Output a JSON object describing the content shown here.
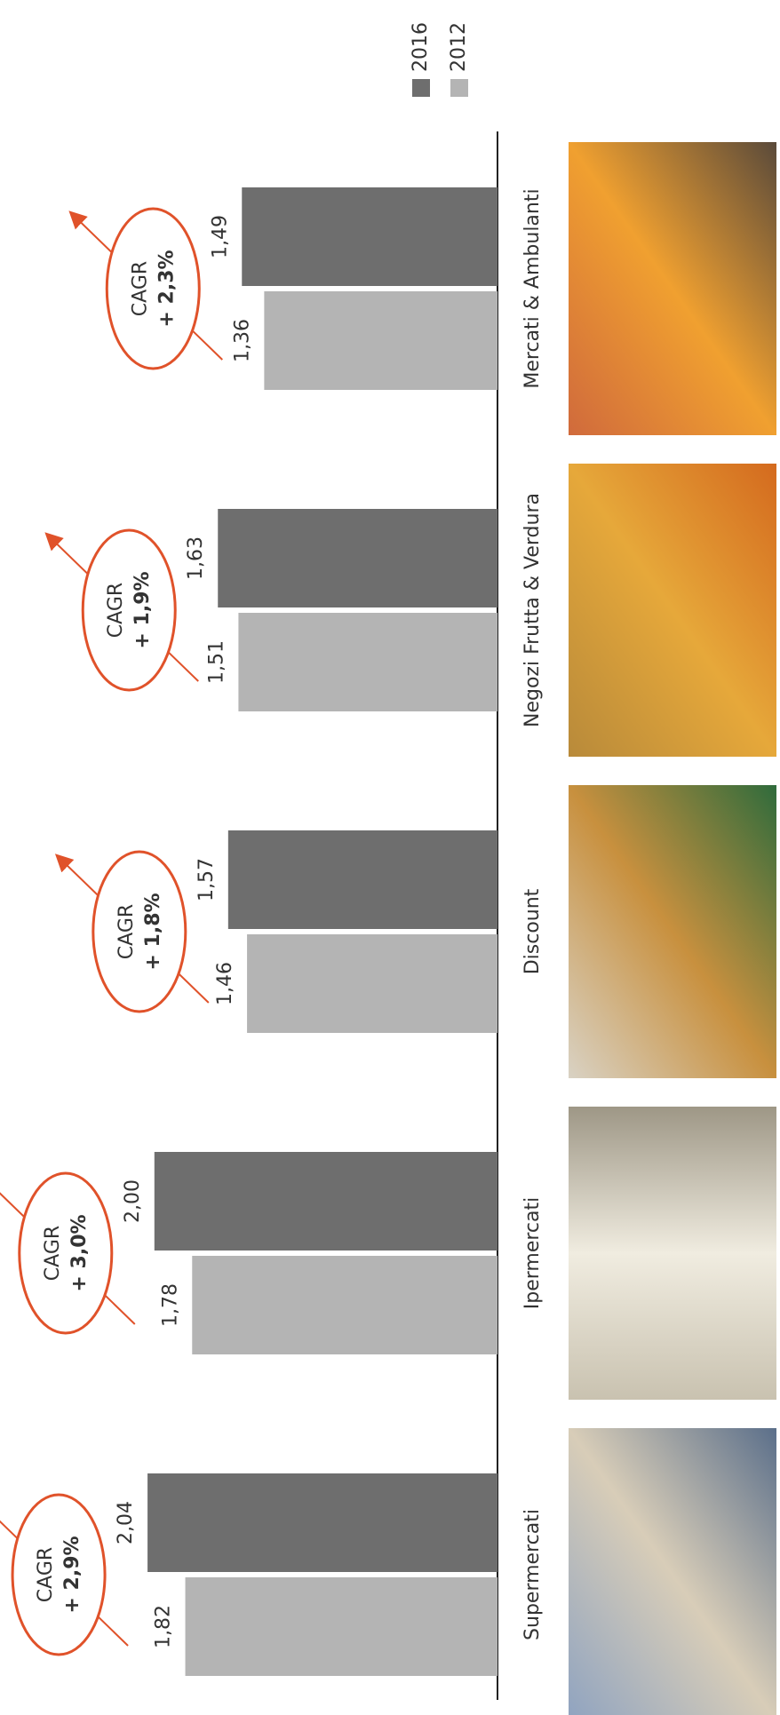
{
  "chart_data": {
    "type": "bar",
    "categories": [
      "Supermercati",
      "Ipermercati",
      "Discount",
      "Negozi Frutta & Verdura",
      "Mercati & Ambulanti"
    ],
    "series": [
      {
        "name": "2016",
        "color": "#6e6e6e",
        "values": [
          2.04,
          2.0,
          1.57,
          1.63,
          1.49
        ],
        "value_labels": [
          "2,04",
          "2,00",
          "1,57",
          "1,63",
          "1,49"
        ]
      },
      {
        "name": "2012",
        "color": "#b4b4b4",
        "values": [
          1.82,
          1.78,
          1.46,
          1.51,
          1.36
        ],
        "value_labels": [
          "1,82",
          "1,78",
          "1,46",
          "1,51",
          "1,36"
        ]
      }
    ],
    "annotations": [
      {
        "text": "CAGR",
        "rate": "+ 2,9%"
      },
      {
        "text": "CAGR",
        "rate": "+ 3,0%"
      },
      {
        "text": "CAGR",
        "rate": "+ 1,8%"
      },
      {
        "text": "CAGR",
        "rate": "+ 1,9%"
      },
      {
        "text": "CAGR",
        "rate": "+ 2,3%"
      }
    ],
    "ylim": [
      0,
      2.9
    ]
  }
}
